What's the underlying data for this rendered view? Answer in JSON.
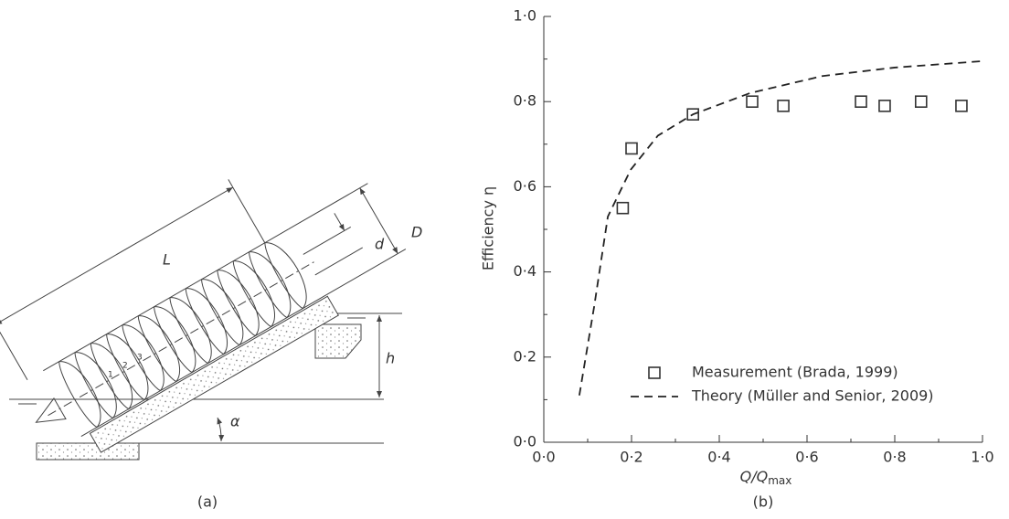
{
  "diagram": {
    "labels": {
      "L": "L",
      "D": "D",
      "d": "d",
      "h": "h",
      "alpha": "α"
    },
    "flight_numbers": [
      "1",
      "2",
      "3"
    ],
    "caption": "(a)"
  },
  "chart_data": {
    "type": "line",
    "caption": "(b)",
    "xlabel": "Q/Q",
    "xlabel_sub": "max",
    "ylabel": "Efficiency η",
    "xlim": [
      0,
      1
    ],
    "ylim": [
      0,
      1
    ],
    "xticks": [
      {
        "value": 0,
        "label": "0·0"
      },
      {
        "value": 0.2,
        "label": "0·2"
      },
      {
        "value": 0.4,
        "label": "0·4"
      },
      {
        "value": 0.6,
        "label": "0·6"
      },
      {
        "value": 0.8,
        "label": "0·8"
      },
      {
        "value": 1,
        "label": "1·0"
      }
    ],
    "yticks": [
      {
        "value": 0,
        "label": "0·0"
      },
      {
        "value": 0.2,
        "label": "0·2"
      },
      {
        "value": 0.4,
        "label": "0·4"
      },
      {
        "value": 0.6,
        "label": "0·6"
      },
      {
        "value": 0.8,
        "label": "0·8"
      },
      {
        "value": 1,
        "label": "1·0"
      }
    ],
    "xminorticks": [
      0.1,
      0.3,
      0.5,
      0.7,
      0.9
    ],
    "yminorticks": [
      0.1,
      0.3,
      0.5,
      0.7,
      0.9
    ],
    "legend": "lower right",
    "series": [
      {
        "name": "Measurement (Brada, 1999)",
        "style": "square",
        "color": "#333333",
        "x": [
          0.18,
          0.2,
          0.34,
          0.475,
          0.546,
          0.723,
          0.777,
          0.86,
          0.952
        ],
        "values": [
          0.55,
          0.69,
          0.77,
          0.8,
          0.79,
          0.8,
          0.79,
          0.8,
          0.79
        ]
      },
      {
        "name": "Theory (Müller and Senior, 2009)",
        "style": "dashed",
        "color": "#222222",
        "x": [
          0.081,
          0.115,
          0.146,
          0.198,
          0.26,
          0.34,
          0.47,
          0.635,
          0.8,
          1.0
        ],
        "values": [
          0.11,
          0.32,
          0.53,
          0.64,
          0.72,
          0.77,
          0.82,
          0.86,
          0.88,
          0.895
        ]
      }
    ]
  }
}
